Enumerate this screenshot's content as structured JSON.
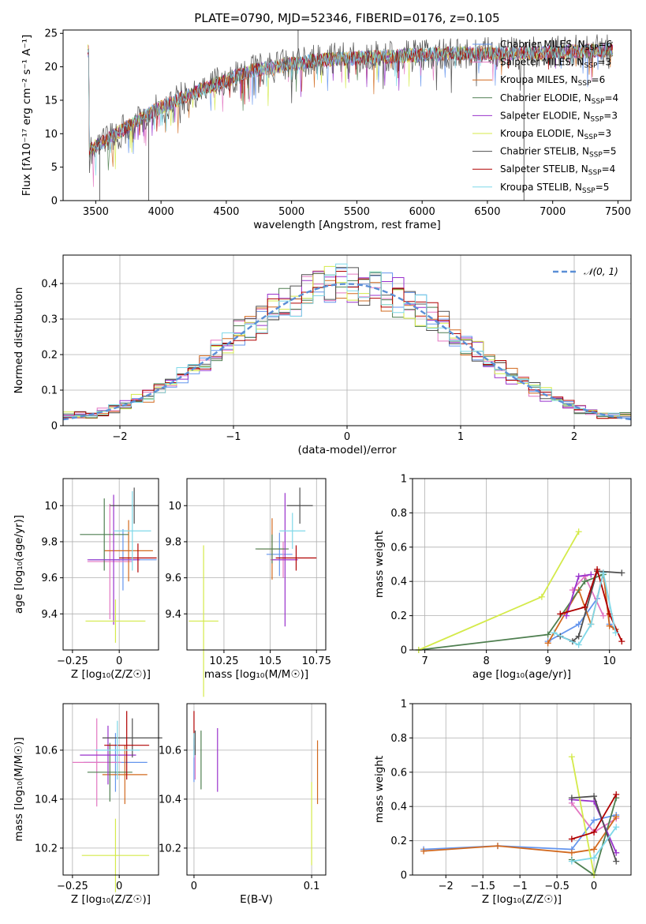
{
  "figure_title": "PLATE=0790, MJD=52346, FIBERID=0176, z=0.105",
  "models": [
    {
      "name": "Chabrier MILES, N",
      "sub": "SSP",
      "tail": "=6",
      "color": "#6495ed"
    },
    {
      "name": "Salpeter MILES, N",
      "sub": "SSP",
      "tail": "=3",
      "color": "#e377c2"
    },
    {
      "name": "Kroupa MILES, N",
      "sub": "SSP",
      "tail": "=6",
      "color": "#d2691e"
    },
    {
      "name": "Chabrier ELODIE, N",
      "sub": "SSP",
      "tail": "=4",
      "color": "#4f7f50"
    },
    {
      "name": "Salpeter ELODIE, N",
      "sub": "SSP",
      "tail": "=3",
      "color": "#9932cc"
    },
    {
      "name": "Kroupa ELODIE, N",
      "sub": "SSP",
      "tail": "=3",
      "color": "#d4ea4a"
    },
    {
      "name": "Chabrier STELIB, N",
      "sub": "SSP",
      "tail": "=5",
      "color": "#505050"
    },
    {
      "name": "Salpeter STELIB, N",
      "sub": "SSP",
      "tail": "=4",
      "color": "#b00000"
    },
    {
      "name": "Kroupa STELIB, N",
      "sub": "SSP",
      "tail": "=5",
      "color": "#7fd8e8"
    }
  ],
  "chart_data": [
    {
      "id": "spectrum",
      "type": "line",
      "xlabel": "wavelength [Angstrom, rest frame]",
      "ylabel": "Flux [fλ10⁻¹⁷ erg cm⁻² s⁻¹ A⁻¹]",
      "xlim": [
        3250,
        7600
      ],
      "ylim": [
        0,
        25.5
      ],
      "xticks": [
        3500,
        4000,
        4500,
        5000,
        5500,
        6000,
        6500,
        7000,
        7500
      ],
      "yticks": [
        0,
        5,
        10,
        15,
        20,
        25
      ],
      "continuum": {
        "x": [
          3450,
          3700,
          3950,
          4300,
          4700,
          5200,
          5700,
          6200,
          6800,
          7400
        ],
        "y": [
          7.5,
          10.5,
          13.5,
          16.5,
          19.5,
          21.0,
          21.5,
          22.0,
          22.0,
          22.5
        ]
      },
      "spikes": [
        {
          "x": 5050,
          "y": 25.5
        },
        {
          "x": 6780,
          "y": 0
        },
        {
          "x": 3905,
          "y": 0
        },
        {
          "x": 3530,
          "y": 0
        }
      ]
    },
    {
      "id": "residual-histogram",
      "type": "bar",
      "xlabel": "(data-model)/error",
      "ylabel": "Normed distribution",
      "xlim": [
        -2.5,
        2.5
      ],
      "ylim": [
        0,
        0.48
      ],
      "xticks": [
        -2,
        -1,
        0,
        1,
        2
      ],
      "yticks": [
        0.0,
        0.1,
        0.2,
        0.3,
        0.4
      ],
      "legend": "𝒩(0, 1)",
      "gaussian": {
        "mean": 0,
        "sigma": 1
      }
    },
    {
      "id": "age-vs-Z",
      "type": "scatter",
      "xlabel": "Z [log₁₀(Z/Z☉)]",
      "ylabel": "age  [log₁₀(age/yr)]",
      "xlim": [
        -0.3,
        0.21
      ],
      "ylim": [
        9.2,
        10.15
      ],
      "xticks": [
        -0.25,
        0.0
      ],
      "yticks": [
        9.4,
        9.6,
        9.8,
        10.0
      ],
      "points": [
        {
          "x": 0.02,
          "y": 9.7,
          "xerr": 0.18,
          "yerr": 0.17
        },
        {
          "x": -0.05,
          "y": 9.69,
          "xerr": 0.12,
          "yerr": 0.32
        },
        {
          "x": 0.05,
          "y": 9.75,
          "xerr": 0.13,
          "yerr": 0.17
        },
        {
          "x": -0.08,
          "y": 9.84,
          "xerr": 0.13,
          "yerr": 0.2
        },
        {
          "x": -0.03,
          "y": 9.7,
          "xerr": 0.14,
          "yerr": 0.36
        },
        {
          "x": -0.02,
          "y": 9.36,
          "xerr": 0.16,
          "yerr": 0.12
        },
        {
          "x": 0.08,
          "y": 10.0,
          "xerr": 0.13,
          "yerr": 0.1
        },
        {
          "x": 0.1,
          "y": 9.71,
          "xerr": 0.1,
          "yerr": 0.08
        },
        {
          "x": 0.07,
          "y": 9.86,
          "xerr": 0.1,
          "yerr": 0.22
        }
      ]
    },
    {
      "id": "age-vs-mass",
      "type": "scatter",
      "xlabel": "mass [log₁₀(M/M☉)]",
      "ylabel": "",
      "xlim": [
        10.05,
        10.8
      ],
      "ylim": [
        9.2,
        10.15
      ],
      "xticks": [
        10.25,
        10.5,
        10.75
      ],
      "yticks": [
        9.4,
        9.6,
        9.8,
        10.0
      ],
      "points": [
        {
          "x": 10.55,
          "y": 9.73,
          "xerr": 0.07,
          "yerr": 0.12
        },
        {
          "x": 10.57,
          "y": 9.7,
          "xerr": 0.07,
          "yerr": 0.1
        },
        {
          "x": 10.51,
          "y": 9.76,
          "xerr": 0.08,
          "yerr": 0.17
        },
        {
          "x": 10.51,
          "y": 9.76,
          "xerr": 0.09,
          "yerr": 0.08
        },
        {
          "x": 10.58,
          "y": 9.7,
          "xerr": 0.07,
          "yerr": 0.37
        },
        {
          "x": 10.14,
          "y": 9.36,
          "xerr": 0.08,
          "yerr": 0.42
        },
        {
          "x": 10.66,
          "y": 10.0,
          "xerr": 0.07,
          "yerr": 0.1
        },
        {
          "x": 10.64,
          "y": 9.71,
          "xerr": 0.11,
          "yerr": 0.07
        },
        {
          "x": 10.62,
          "y": 9.86,
          "xerr": 0.07,
          "yerr": 0.1
        }
      ]
    },
    {
      "id": "mass-weight-vs-age",
      "type": "line",
      "xlabel": "age  [log₁₀(age/yr)]",
      "ylabel": "mass weight",
      "xlim": [
        6.8,
        10.35
      ],
      "ylim": [
        0,
        1
      ],
      "xticks": [
        7,
        8,
        9,
        10
      ],
      "yticks": [
        0.0,
        0.2,
        0.4,
        0.6,
        0.8,
        1.0
      ],
      "series": [
        {
          "x": [
            9.0,
            9.5,
            9.8,
            9.9,
            10.0,
            10.1
          ],
          "y": [
            0.05,
            0.15,
            0.3,
            0.45,
            0.15,
            0.12
          ]
        },
        {
          "x": [
            9.4,
            9.6,
            9.9
          ],
          "y": [
            0.35,
            0.43,
            0.2
          ]
        },
        {
          "x": [
            9.0,
            9.5,
            9.7,
            9.9,
            10.0,
            10.1
          ],
          "y": [
            0.04,
            0.35,
            0.15,
            0.45,
            0.14,
            0.12
          ]
        },
        {
          "x": [
            6.9,
            9.0,
            9.6,
            9.9
          ],
          "y": [
            0.0,
            0.09,
            0.4,
            0.44
          ]
        },
        {
          "x": [
            9.3,
            9.5,
            9.7
          ],
          "y": [
            0.2,
            0.43,
            0.44
          ]
        },
        {
          "x": [
            6.9,
            8.9,
            9.5
          ],
          "y": [
            0.0,
            0.31,
            0.69
          ]
        },
        {
          "x": [
            9.2,
            9.4,
            9.5,
            9.8,
            10.2
          ],
          "y": [
            0.08,
            0.05,
            0.08,
            0.46,
            0.45
          ]
        },
        {
          "x": [
            9.2,
            9.6,
            9.8,
            10.0,
            10.2
          ],
          "y": [
            0.21,
            0.25,
            0.47,
            0.21,
            0.05
          ]
        },
        {
          "x": [
            9.1,
            9.5,
            9.7,
            9.9,
            10.1
          ],
          "y": [
            0.1,
            0.03,
            0.15,
            0.45,
            0.1
          ]
        }
      ]
    },
    {
      "id": "mass-vs-Z",
      "type": "scatter",
      "xlabel": "Z [log₁₀(Z/Z☉)]",
      "ylabel": "mass [log₁₀(M/M☉)]",
      "xlim": [
        -0.3,
        0.21
      ],
      "ylim": [
        10.09,
        10.79
      ],
      "xticks": [
        -0.25,
        0.0
      ],
      "yticks": [
        10.2,
        10.4,
        10.6
      ],
      "points": [
        {
          "x": -0.02,
          "y": 10.55,
          "xerr": 0.17,
          "yerr": 0.12
        },
        {
          "x": -0.12,
          "y": 10.55,
          "xerr": 0.13,
          "yerr": 0.18
        },
        {
          "x": 0.03,
          "y": 10.5,
          "xerr": 0.12,
          "yerr": 0.12
        },
        {
          "x": -0.05,
          "y": 10.51,
          "xerr": 0.12,
          "yerr": 0.12
        },
        {
          "x": -0.06,
          "y": 10.58,
          "xerr": 0.15,
          "yerr": 0.12
        },
        {
          "x": -0.02,
          "y": 10.17,
          "xerr": 0.18,
          "yerr": 0.15
        },
        {
          "x": 0.07,
          "y": 10.65,
          "xerr": 0.16,
          "yerr": 0.08
        },
        {
          "x": 0.04,
          "y": 10.62,
          "xerr": 0.12,
          "yerr": 0.14
        },
        {
          "x": -0.01,
          "y": 10.6,
          "xerr": 0.12,
          "yerr": 0.12
        }
      ]
    },
    {
      "id": "mass-vs-EBV",
      "type": "scatter",
      "xlabel": "E(B-V)",
      "ylabel": "",
      "xlim": [
        -0.006,
        0.112
      ],
      "ylim": [
        10.09,
        10.79
      ],
      "xticks": [
        0.0,
        0.1
      ],
      "yticks": [
        10.2,
        10.4,
        10.6
      ],
      "points": [
        {
          "x": 0.0,
          "y": 10.56,
          "xerr": 0,
          "yerr": 0.09
        },
        {
          "x": 0.001,
          "y": 10.55,
          "xerr": 0,
          "yerr": 0.07
        },
        {
          "x": 0.105,
          "y": 10.51,
          "xerr": 0,
          "yerr": 0.13
        },
        {
          "x": 0.006,
          "y": 10.56,
          "xerr": 0,
          "yerr": 0.12
        },
        {
          "x": 0.02,
          "y": 10.56,
          "xerr": 0,
          "yerr": 0.13
        },
        {
          "x": 0.1,
          "y": 10.3,
          "xerr": 0,
          "yerr": 0.17
        },
        {
          "x": 0.001,
          "y": 10.63,
          "xerr": 0,
          "yerr": 0.05
        },
        {
          "x": 0.0,
          "y": 10.68,
          "xerr": 0,
          "yerr": 0.08
        },
        {
          "x": 0.0,
          "y": 10.62,
          "xerr": 0,
          "yerr": 0.05
        }
      ]
    },
    {
      "id": "mass-weight-vs-Z",
      "type": "line",
      "xlabel": "Z [log₁₀(Z/Z☉)]",
      "ylabel": "mass weight",
      "xlim": [
        -2.45,
        0.5
      ],
      "ylim": [
        0,
        1
      ],
      "xticks": [
        -2.0,
        -1.5,
        -1.0,
        -0.5,
        0.0
      ],
      "yticks": [
        0.0,
        0.2,
        0.4,
        0.6,
        0.8,
        1.0
      ],
      "series": [
        {
          "x": [
            -2.3,
            -1.3,
            -0.3,
            0.0,
            0.3
          ],
          "y": [
            0.15,
            0.17,
            0.15,
            0.32,
            0.35
          ]
        },
        {
          "x": [
            -0.3,
            0.0,
            0.3
          ],
          "y": [
            0.42,
            0.25,
            0.33
          ]
        },
        {
          "x": [
            -2.3,
            -1.3,
            -0.3,
            0.0,
            0.3
          ],
          "y": [
            0.14,
            0.17,
            0.13,
            0.15,
            0.34
          ]
        },
        {
          "x": [
            -0.3,
            0.0,
            0.3
          ],
          "y": [
            0.09,
            0.0,
            0.45
          ]
        },
        {
          "x": [
            -0.3,
            0.0,
            0.3
          ],
          "y": [
            0.44,
            0.43,
            0.13
          ]
        },
        {
          "x": [
            -0.3,
            0.0
          ],
          "y": [
            0.69,
            0.0
          ]
        },
        {
          "x": [
            -0.3,
            0.0,
            0.3
          ],
          "y": [
            0.45,
            0.46,
            0.08
          ]
        },
        {
          "x": [
            -0.3,
            0.0,
            0.3
          ],
          "y": [
            0.21,
            0.25,
            0.47
          ]
        },
        {
          "x": [
            -0.3,
            0.0,
            0.3
          ],
          "y": [
            0.08,
            0.1,
            0.28
          ]
        }
      ]
    }
  ]
}
